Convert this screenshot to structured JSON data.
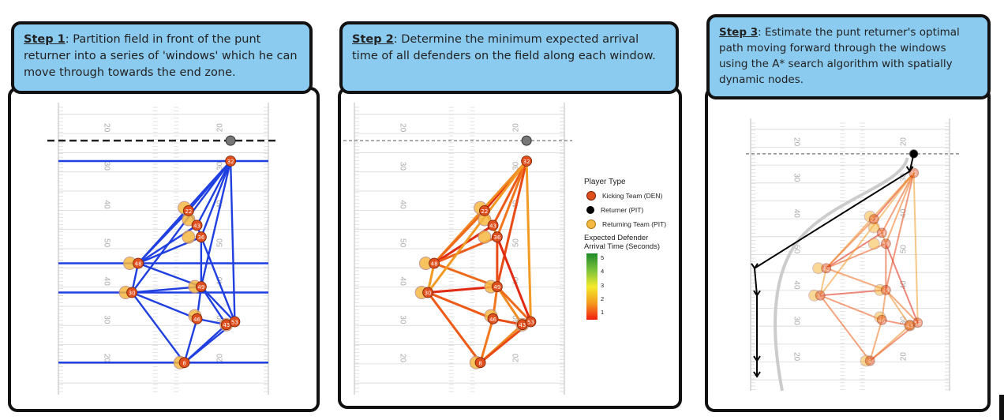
{
  "steps": [
    {
      "label": "Step 1",
      "sep": ":",
      "text": " Partition field in front of the punt returner into a series of 'windows' which he can move through towards the end zone."
    },
    {
      "label": "Step 2",
      "sep": ":",
      "text": " Determine the minimum expected arrival time of all defenders on the field along each window."
    },
    {
      "label": "Step 3",
      "sep": ":",
      "text": " Estimate the punt returner's optimal path moving forward through the windows using the A* search algorithm with spatially dynamic nodes."
    }
  ],
  "yard_labels_left": [
    "20",
    "30",
    "40",
    "50",
    "40",
    "30",
    "20"
  ],
  "yard_labels_right": [
    "20",
    "30",
    "40",
    "50",
    "40",
    "30",
    "20"
  ],
  "kicking_numbers": [
    "32",
    "22",
    "43",
    "36",
    "48",
    "30",
    "49",
    "46",
    "43",
    "53",
    "8"
  ],
  "legend": {
    "player_type_title": "Player Type",
    "items": [
      {
        "label": "Kicking Team (DEN)",
        "color": "#e0501e"
      },
      {
        "label": "Returner (PIT)",
        "color": "#000000"
      },
      {
        "label": "Returning Team (PIT)",
        "color": "#f5b942"
      }
    ],
    "time_title_1": "Expected Defender",
    "time_title_2": "Arrival Time (Seconds)",
    "ticks": [
      "5",
      "4",
      "3",
      "2",
      "1"
    ]
  },
  "colors": {
    "header_bg": "#8ccbf0",
    "window_blue": "#1f3fe0",
    "kicking": "#e0501e",
    "returning": "#f5b942"
  }
}
